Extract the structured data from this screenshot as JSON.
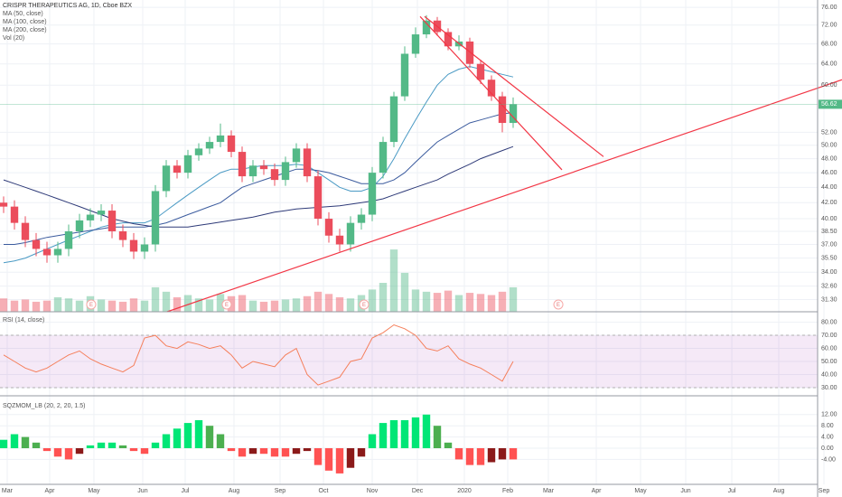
{
  "chart_data": [
    {
      "type": "candlestick",
      "title": "CRISPR THERAPEUTICS AG, 1D, Cboe BZX",
      "legend": [
        "MA (50, close)",
        "MA (100, close)",
        "MA (200, close)",
        "Vol (20)"
      ],
      "log_scale": true,
      "grid": true,
      "xlim": [
        -0.333,
        77.333
      ],
      "xticks": [
        {
          "value": 0.33,
          "label": "Mar"
        },
        {
          "value": 4.25,
          "label": "Apr"
        },
        {
          "value": 8.33,
          "label": "May"
        },
        {
          "value": 12.83,
          "label": "Jun"
        },
        {
          "value": 16.75,
          "label": "Jul"
        },
        {
          "value": 21.25,
          "label": "Aug"
        },
        {
          "value": 25.5,
          "label": "Sep"
        },
        {
          "value": 29.5,
          "label": "Oct"
        },
        {
          "value": 34,
          "label": "Nov"
        },
        {
          "value": 38.17,
          "label": "Dec"
        },
        {
          "value": 42.5,
          "label": "2020"
        },
        {
          "value": 46.5,
          "label": "Feb"
        },
        {
          "value": 50.25,
          "label": "Mar"
        },
        {
          "value": 54.67,
          "label": "Apr"
        },
        {
          "value": 58.75,
          "label": "May"
        },
        {
          "value": 62.92,
          "label": "Jun"
        },
        {
          "value": 67.17,
          "label": "Jul"
        },
        {
          "value": 71.5,
          "label": "Aug"
        },
        {
          "value": 75.67,
          "label": "Sep"
        }
      ],
      "ylim": [
        30.16,
        77.7
      ],
      "yticks": [
        {
          "value": 76,
          "label": "76.00"
        },
        {
          "value": 72,
          "label": "72.00"
        },
        {
          "value": 68,
          "label": "68.00"
        },
        {
          "value": 64,
          "label": "64.00"
        },
        {
          "value": 60,
          "label": "60.00"
        },
        {
          "value": 52,
          "label": "52.00"
        },
        {
          "value": 50,
          "label": "50.00"
        },
        {
          "value": 48,
          "label": "48.00"
        },
        {
          "value": 46,
          "label": "46.00"
        },
        {
          "value": 44,
          "label": "44.00"
        },
        {
          "value": 42,
          "label": "42.00"
        },
        {
          "value": 40,
          "label": "40.00"
        },
        {
          "value": 38.5,
          "label": "38.50"
        },
        {
          "value": 37,
          "label": "37.00"
        },
        {
          "value": 35.5,
          "label": "35.50"
        },
        {
          "value": 34,
          "label": "34.00"
        },
        {
          "value": 32.6,
          "label": "32.60"
        },
        {
          "value": 31.3,
          "label": "31.30"
        }
      ],
      "up_color": "#53b987",
      "down_color": "#eb4d5c",
      "open": [
        42.0,
        41.5,
        39.5,
        37.5,
        36.5,
        35.8,
        36.5,
        38.5,
        39.8,
        40.5,
        41.0,
        38.5,
        37.5,
        36.2,
        37.0,
        43.5,
        47.0,
        46.0,
        48.5,
        49.5,
        50.5,
        51.5,
        49.0,
        45.5,
        47.0,
        46.5,
        45.0,
        47.5,
        49.5,
        45.5,
        40.0,
        38.0,
        37.0,
        39.5,
        40.5,
        46.0,
        50.5,
        58.0,
        66.0,
        70.0,
        73.0,
        70.5,
        67.5,
        68.5,
        64.0,
        61.0,
        58.0,
        53.5
      ],
      "high": [
        42.8,
        42.3,
        40.3,
        38.3,
        37.3,
        37.3,
        39.3,
        40.6,
        41.3,
        41.8,
        41.8,
        39.3,
        38.3,
        37.8,
        44.3,
        47.8,
        47.8,
        49.3,
        50.3,
        51.3,
        53.4,
        52.3,
        49.8,
        47.8,
        47.8,
        47.3,
        48.3,
        50.3,
        50.3,
        46.3,
        40.8,
        38.8,
        40.3,
        41.3,
        46.8,
        51.3,
        58.8,
        67.5,
        71.5,
        74.2,
        73.8,
        71.3,
        69.8,
        69.3,
        64.8,
        61.8,
        58.8,
        57.8
      ],
      "low": [
        40.7,
        38.7,
        36.7,
        35.7,
        35.0,
        35.0,
        35.7,
        37.7,
        39.0,
        39.7,
        37.7,
        36.7,
        35.4,
        35.4,
        36.2,
        42.7,
        45.2,
        45.2,
        47.7,
        48.7,
        49.7,
        48.2,
        44.7,
        44.7,
        45.7,
        44.2,
        44.2,
        46.7,
        44.7,
        39.2,
        37.2,
        36.2,
        36.2,
        38.7,
        39.7,
        45.2,
        49.7,
        57.2,
        65.2,
        69.2,
        69.7,
        66.7,
        66.7,
        63.2,
        60.2,
        57.2,
        52.0,
        52.7
      ],
      "close": [
        41.5,
        39.5,
        37.5,
        36.5,
        35.8,
        36.5,
        38.5,
        39.8,
        40.5,
        41.0,
        38.5,
        37.5,
        36.2,
        37.0,
        43.5,
        47.0,
        46.0,
        48.5,
        49.5,
        50.5,
        51.5,
        49.0,
        45.5,
        47.0,
        46.5,
        45.0,
        47.5,
        49.5,
        45.5,
        40.0,
        38.0,
        37.0,
        39.5,
        40.5,
        46.0,
        50.5,
        58.0,
        66.0,
        70.0,
        73.0,
        70.5,
        67.5,
        68.5,
        64.0,
        61.0,
        58.0,
        53.5,
        56.62
      ],
      "volume": [
        1.2,
        1.0,
        1.1,
        0.9,
        1.0,
        1.3,
        1.2,
        1.0,
        1.4,
        1.1,
        1.0,
        0.9,
        1.2,
        1.0,
        2.2,
        1.8,
        1.3,
        1.5,
        1.2,
        1.1,
        1.6,
        1.4,
        1.5,
        1.0,
        0.9,
        1.0,
        1.1,
        1.2,
        1.4,
        1.8,
        1.6,
        1.3,
        1.2,
        1.5,
        2.0,
        2.6,
        5.6,
        3.5,
        2.0,
        1.8,
        1.7,
        1.9,
        1.5,
        1.7,
        1.6,
        1.5,
        1.8,
        2.2
      ],
      "vlim": [
        0,
        6.5
      ],
      "series": [
        {
          "name": "MA (50, close)",
          "color": "#4a9ac4",
          "values": [
            35,
            35.2,
            35.5,
            36,
            36.5,
            37,
            37.5,
            38,
            38.5,
            39,
            39.3,
            39.5,
            39.5,
            39.5,
            40,
            41,
            42,
            43,
            44,
            45,
            46,
            46.5,
            46.5,
            46.8,
            47,
            47,
            47,
            47.2,
            47,
            46,
            45,
            44,
            43.5,
            43.5,
            44,
            45.5,
            48,
            51,
            54,
            57,
            60,
            62,
            63,
            63.5,
            63,
            62.5,
            62,
            61.5
          ]
        },
        {
          "name": "MA (100, close)",
          "color": "#3b5b9e",
          "values": [
            37,
            37,
            37.2,
            37.5,
            37.8,
            38,
            38.2,
            38.4,
            38.6,
            38.8,
            39,
            39,
            39,
            39,
            39.2,
            39.5,
            40,
            40.5,
            41,
            41.5,
            42,
            43,
            44,
            44.5,
            45,
            45.5,
            46,
            46.5,
            46.5,
            46.3,
            46,
            45.5,
            45,
            44.5,
            44.5,
            44.5,
            45,
            46,
            47.5,
            49,
            50.5,
            51.5,
            52.5,
            53.5,
            54,
            54.5,
            55,
            55.2
          ]
        },
        {
          "name": "MA (200, close)",
          "color": "#2e3a78",
          "values": [
            45,
            44.5,
            44,
            43.5,
            43,
            42.5,
            42,
            41.5,
            41,
            40.5,
            40,
            39.7,
            39.4,
            39.2,
            39,
            39,
            39,
            39,
            39.2,
            39.4,
            39.6,
            39.8,
            40,
            40.2,
            40.5,
            40.8,
            41,
            41.2,
            41.3,
            41.4,
            41.5,
            41.6,
            41.8,
            42,
            42.2,
            42.5,
            43,
            43.5,
            44,
            44.5,
            45,
            45.8,
            46.5,
            47.2,
            48,
            48.6,
            49.2,
            49.8
          ]
        }
      ],
      "trendlines": [
        {
          "x": [
            15.08,
            77.33
          ],
          "y": [
            30.16,
            61.0
          ]
        },
        {
          "x": [
            38.42,
            51.5
          ],
          "y": [
            73.9,
            46.4
          ]
        },
        {
          "x": [
            38.83,
            55.33
          ],
          "y": [
            73.9,
            48.3
          ]
        }
      ],
      "trendline_color": "#f23645",
      "earnings": {
        "label": "E",
        "x": [
          8.08,
          20.58,
          33.25,
          51.17
        ]
      }
    },
    {
      "type": "line",
      "title": "RSI (14, close)",
      "color": "#f57f5b",
      "band": [
        30,
        70
      ],
      "band_color": "#9c27b0",
      "xlim": [
        -0.333,
        77.333
      ],
      "ylim": [
        24.5,
        86.6
      ],
      "yticks": [
        {
          "value": 80,
          "label": "80.00"
        },
        {
          "value": 70,
          "label": "70.00"
        },
        {
          "value": 60,
          "label": "60.00"
        },
        {
          "value": 50,
          "label": "50.00"
        },
        {
          "value": 40,
          "label": "40.00"
        },
        {
          "value": 30,
          "label": "30.00"
        }
      ],
      "values": [
        55,
        50,
        45,
        42,
        45,
        50,
        55,
        58,
        52,
        48,
        45,
        42,
        47,
        68,
        70,
        62,
        60,
        65,
        63,
        60,
        62,
        55,
        45,
        50,
        48,
        46,
        55,
        60,
        40,
        32,
        35,
        38,
        50,
        52,
        68,
        72,
        78,
        75,
        70,
        60,
        58,
        62,
        52,
        48,
        45,
        40,
        35,
        50
      ]
    },
    {
      "type": "histogram",
      "title": "SQZMOM_LB (20, 2, 20, 1.5)",
      "colors": {
        "pos_rising": "#00e676",
        "pos_falling": "#4caf50",
        "neg_falling": "#ff5252",
        "neg_rising": "#8b1a1a"
      },
      "xlim": [
        -0.333,
        77.333
      ],
      "ylim": [
        -15.8,
        18.06
      ],
      "yticks": [
        {
          "value": 12,
          "label": "12.00"
        },
        {
          "value": 8,
          "label": "8.00"
        },
        {
          "value": 4,
          "label": "4.00"
        },
        {
          "value": 0,
          "label": "0.00"
        },
        {
          "value": -4,
          "label": "-4.00"
        }
      ],
      "values": [
        3,
        5,
        4,
        2,
        -1,
        -3,
        -4,
        -2,
        1,
        2,
        2,
        1,
        -1,
        -2,
        2,
        5,
        7,
        9,
        10,
        8,
        5,
        -1,
        -3,
        -2,
        -2,
        -3,
        -3,
        -2,
        -1,
        -6,
        -8,
        -9,
        -7,
        -3,
        5,
        9,
        10,
        10,
        11,
        12,
        8,
        2,
        -4,
        -6,
        -6,
        -5,
        -4,
        -4
      ]
    }
  ]
}
